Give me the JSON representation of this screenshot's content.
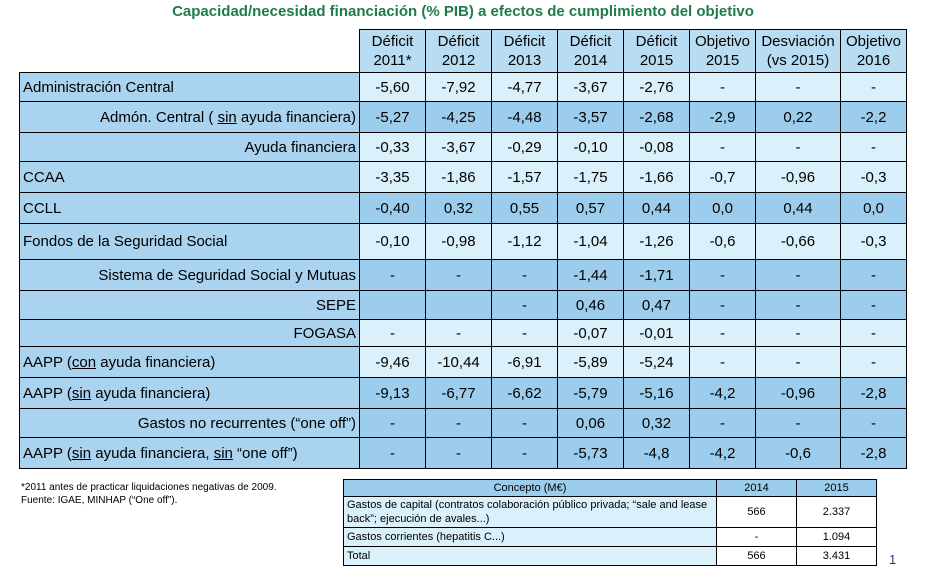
{
  "title": "Capacidad/necesidad financiación (% PIB) a efectos de cumplimiento del objetivo",
  "columns": [
    [
      "Déficit",
      "2011*"
    ],
    [
      "Déficit",
      "2012"
    ],
    [
      "Déficit",
      "2013"
    ],
    [
      "Déficit",
      "2014"
    ],
    [
      "Déficit",
      "2015"
    ],
    [
      "Objetivo",
      "2015"
    ],
    [
      "Desviación",
      "(vs 2015)"
    ],
    [
      "Objetivo",
      "2016"
    ]
  ],
  "rows": [
    {
      "label": "Administración Central",
      "values": [
        "-5,60",
        "-7,92",
        "-4,77",
        "-3,67",
        "-2,76",
        "-",
        "-",
        "-"
      ]
    },
    {
      "label": "Admón. Central ( sin ayuda financiera)",
      "values": [
        "-5,27",
        "-4,25",
        "-4,48",
        "-3,57",
        "-2,68",
        "-2,9",
        "0,22",
        "-2,2"
      ]
    },
    {
      "label": "Ayuda financiera",
      "values": [
        "-0,33",
        "-3,67",
        "-0,29",
        "-0,10",
        "-0,08",
        "-",
        "-",
        "-"
      ]
    },
    {
      "label": "CCAA",
      "values": [
        "-3,35",
        "-1,86",
        "-1,57",
        "-1,75",
        "-1,66",
        "-0,7",
        "-0,96",
        "-0,3"
      ]
    },
    {
      "label": "CCLL",
      "values": [
        "-0,40",
        "0,32",
        "0,55",
        "0,57",
        "0,44",
        "0,0",
        "0,44",
        "0,0"
      ]
    },
    {
      "label": "Fondos de la Seguridad Social",
      "values": [
        "-0,10",
        "-0,98",
        "-1,12",
        "-1,04",
        "-1,26",
        "-0,6",
        "-0,66",
        "-0,3"
      ]
    },
    {
      "label": "Sistema de Seguridad Social y Mutuas",
      "values": [
        "-",
        "-",
        "-",
        "-1,44",
        "-1,71",
        "-",
        "-",
        "-"
      ]
    },
    {
      "label": "SEPE",
      "values": [
        "",
        "",
        "-",
        "0,46",
        "0,47",
        "-",
        "-",
        "-"
      ]
    },
    {
      "label": "FOGASA",
      "values": [
        "-",
        "-",
        "-",
        "-0,07",
        "-0,01",
        "-",
        "-",
        "-"
      ]
    },
    {
      "label": "AAPP (con ayuda financiera)",
      "values": [
        "-9,46",
        "-10,44",
        "-6,91",
        "-5,89",
        "-5,24",
        "-",
        "-",
        "-"
      ]
    },
    {
      "label": "AAPP (sin ayuda financiera)",
      "values": [
        "-9,13",
        "-6,77",
        "-6,62",
        "-5,79",
        "-5,16",
        "-4,2",
        "-0,96",
        "-2,8"
      ]
    },
    {
      "label": "Gastos no recurrentes (“one off”)",
      "values": [
        "-",
        "-",
        "-",
        "0,06",
        "0,32",
        "-",
        "-",
        "-"
      ]
    },
    {
      "label": "AAPP (sin ayuda financiera, sin “one off”)",
      "values": [
        "-",
        "-",
        "-",
        "-5,73",
        "-4,8",
        "-4,2",
        "-0,6",
        "-2,8"
      ]
    }
  ],
  "notes": [
    "*2011 antes de practicar liquidaciones negativas de 2009.",
    "Fuente: IGAE, MINHAP (“One off”)."
  ],
  "sub_table": {
    "headers": [
      "Concepto (M€)",
      "2014",
      "2015"
    ],
    "rows": [
      {
        "concept": "Gastos de capital (contratos colaboración público privada; “sale and lease back”; ejecución de avales...)",
        "y2014": "566",
        "y2015": "2.337"
      },
      {
        "concept": "Gastos corrientes (hepatitis C...)",
        "y2014": "-",
        "y2015": "1.094"
      },
      {
        "concept": "Total",
        "y2014": "566",
        "y2015": "3.431"
      }
    ]
  },
  "page_number": "1"
}
